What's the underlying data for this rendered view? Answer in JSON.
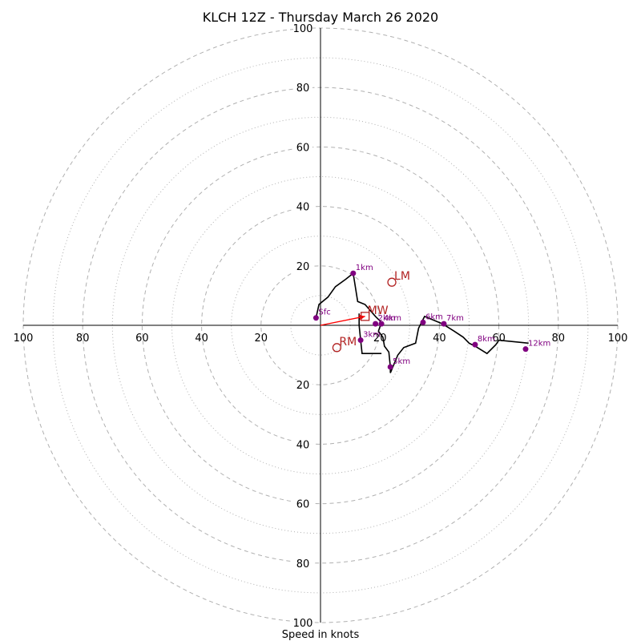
{
  "chart_data": {
    "type": "hodograph",
    "title": "KLCH 12Z - Thursday March 26 2020",
    "xlabel": "Speed in knots",
    "range": [
      -100,
      100
    ],
    "ring_major": [
      20,
      40,
      60,
      80,
      100
    ],
    "ring_minor": [
      10,
      30,
      50,
      70,
      90
    ],
    "ticks": {
      "x_left": [
        "100",
        "80",
        "60",
        "40",
        "20"
      ],
      "x_right": [
        "20",
        "40",
        "60",
        "80",
        "100"
      ],
      "y_top": [
        "20",
        "40",
        "60",
        "80",
        "100"
      ],
      "y_bottom": [
        "20",
        "40",
        "60",
        "80",
        "100"
      ]
    },
    "trace": [
      {
        "u": -1.5,
        "v": 2.5
      },
      {
        "u": -0.5,
        "v": 7
      },
      {
        "u": 2.5,
        "v": 9.5
      },
      {
        "u": 5,
        "v": 13
      },
      {
        "u": 8.5,
        "v": 15.5
      },
      {
        "u": 11,
        "v": 17.5
      },
      {
        "u": 12.5,
        "v": 8
      },
      {
        "u": 15,
        "v": 7
      },
      {
        "u": 18.5,
        "v": 3
      },
      {
        "u": 20.5,
        "v": 1
      },
      {
        "u": 19.5,
        "v": -2
      },
      {
        "u": 21,
        "v": -4
      },
      {
        "u": 21.5,
        "v": -7
      },
      {
        "u": 23,
        "v": -9
      },
      {
        "u": 23.5,
        "v": -14
      },
      {
        "u": 23.5,
        "v": -16
      },
      {
        "u": 26,
        "v": -10
      },
      {
        "u": 28,
        "v": -7.5
      },
      {
        "u": 32,
        "v": -6
      },
      {
        "u": 33,
        "v": -1
      },
      {
        "u": 35,
        "v": 3
      },
      {
        "u": 41,
        "v": 0.5
      },
      {
        "u": 45,
        "v": -2
      },
      {
        "u": 48,
        "v": -4
      },
      {
        "u": 50,
        "v": -6
      },
      {
        "u": 52,
        "v": -7
      },
      {
        "u": 56,
        "v": -9.5
      },
      {
        "u": 59,
        "v": -6.5
      },
      {
        "u": 60,
        "v": -5
      },
      {
        "u": 70,
        "v": -6
      }
    ],
    "trace2": [
      {
        "u": 13,
        "v": 4
      },
      {
        "u": 13,
        "v": 0
      },
      {
        "u": 13.5,
        "v": -5
      },
      {
        "u": 14,
        "v": -9.5
      },
      {
        "u": 18,
        "v": -9.5
      },
      {
        "u": 20.5,
        "v": -9.5
      }
    ],
    "heights": [
      {
        "label": "Sfc",
        "u": -1.5,
        "v": 2.5
      },
      {
        "label": "1km",
        "u": 11,
        "v": 17.5
      },
      {
        "label": "2km",
        "u": 18.5,
        "v": 0.5
      },
      {
        "label": "4km",
        "u": 20.5,
        "v": 0.5
      },
      {
        "label": "3km",
        "u": 13.5,
        "v": -5
      },
      {
        "label": "5km",
        "u": 23.5,
        "v": -14
      },
      {
        "label": "6km",
        "u": 34.5,
        "v": 1
      },
      {
        "label": "7km",
        "u": 41.5,
        "v": 0.5
      },
      {
        "label": "8km",
        "u": 52,
        "v": -6.5
      },
      {
        "label": "12km",
        "u": 69,
        "v": -8
      }
    ],
    "storm_motion": [
      {
        "label": "LM",
        "u": 24,
        "v": 14.5,
        "marker": "circle"
      },
      {
        "label": "RM",
        "u": 5.5,
        "v": -7.5,
        "marker": "circle"
      },
      {
        "label": "MW",
        "u": 15,
        "v": 3,
        "marker": "square"
      }
    ],
    "storm_vector": {
      "u": 15,
      "v": 3
    },
    "colors": {
      "trace": "#000000",
      "height_points": "#800080",
      "motion": "#b22222",
      "vector": "#ff0000",
      "grid": "#b0b0b0"
    }
  }
}
